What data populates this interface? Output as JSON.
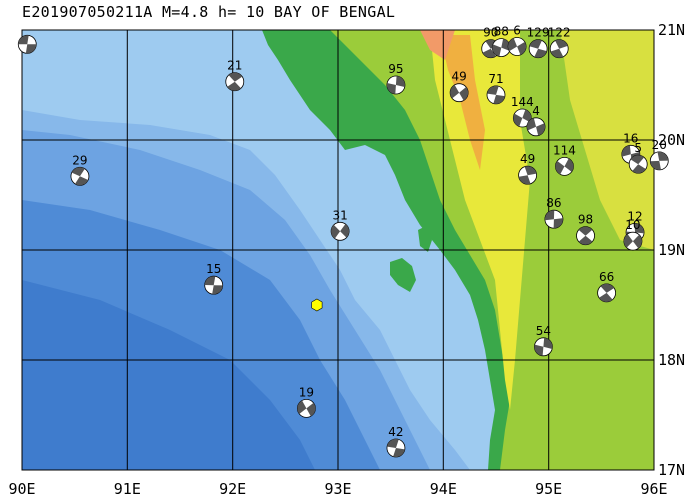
{
  "title": "E201907050211A M=4.8 h= 10 BAY OF BENGAL",
  "map": {
    "lon_range": [
      90,
      96
    ],
    "lat_range": [
      17,
      21
    ],
    "lon_labels": [
      "90E",
      "91E",
      "92E",
      "93E",
      "94E",
      "95E",
      "96E"
    ],
    "lat_labels": [
      "21N",
      "20N",
      "19N",
      "18N",
      "17N"
    ]
  },
  "epicenter": {
    "lon": 92.8,
    "lat": 18.5,
    "color": "#ffff00"
  },
  "focal_mechanisms": [
    {
      "depth": "",
      "lon": 90.05,
      "lat": 20.87
    },
    {
      "depth": "21",
      "lon": 92.02,
      "lat": 20.53
    },
    {
      "depth": "95",
      "lon": 93.55,
      "lat": 20.5
    },
    {
      "depth": "49",
      "lon": 94.15,
      "lat": 20.43
    },
    {
      "depth": "71",
      "lon": 94.5,
      "lat": 20.41
    },
    {
      "depth": "90",
      "lon": 94.45,
      "lat": 20.83
    },
    {
      "depth": "88",
      "lon": 94.55,
      "lat": 20.84
    },
    {
      "depth": "6",
      "lon": 94.7,
      "lat": 20.85
    },
    {
      "depth": "129",
      "lon": 94.9,
      "lat": 20.83
    },
    {
      "depth": "122",
      "lon": 95.1,
      "lat": 20.83
    },
    {
      "depth": "144",
      "lon": 94.75,
      "lat": 20.2
    },
    {
      "depth": "4",
      "lon": 94.88,
      "lat": 20.12
    },
    {
      "depth": "29",
      "lon": 90.55,
      "lat": 19.67
    },
    {
      "depth": "49",
      "lon": 94.8,
      "lat": 19.68
    },
    {
      "depth": "114",
      "lon": 95.15,
      "lat": 19.76
    },
    {
      "depth": "16",
      "lon": 95.78,
      "lat": 19.87
    },
    {
      "depth": "5",
      "lon": 95.85,
      "lat": 19.78
    },
    {
      "depth": "20",
      "lon": 96.05,
      "lat": 19.81
    },
    {
      "depth": "31",
      "lon": 93.02,
      "lat": 19.17
    },
    {
      "depth": "86",
      "lon": 95.05,
      "lat": 19.28
    },
    {
      "depth": "98",
      "lon": 95.35,
      "lat": 19.13
    },
    {
      "depth": "12",
      "lon": 95.82,
      "lat": 19.16
    },
    {
      "depth": "10",
      "lon": 95.8,
      "lat": 19.08
    },
    {
      "depth": "15",
      "lon": 91.82,
      "lat": 18.68
    },
    {
      "depth": "66",
      "lon": 95.55,
      "lat": 18.61
    },
    {
      "depth": "54",
      "lon": 94.95,
      "lat": 18.12
    },
    {
      "depth": "19",
      "lon": 92.7,
      "lat": 17.56
    },
    {
      "depth": "42",
      "lon": 93.55,
      "lat": 17.2
    }
  ]
}
